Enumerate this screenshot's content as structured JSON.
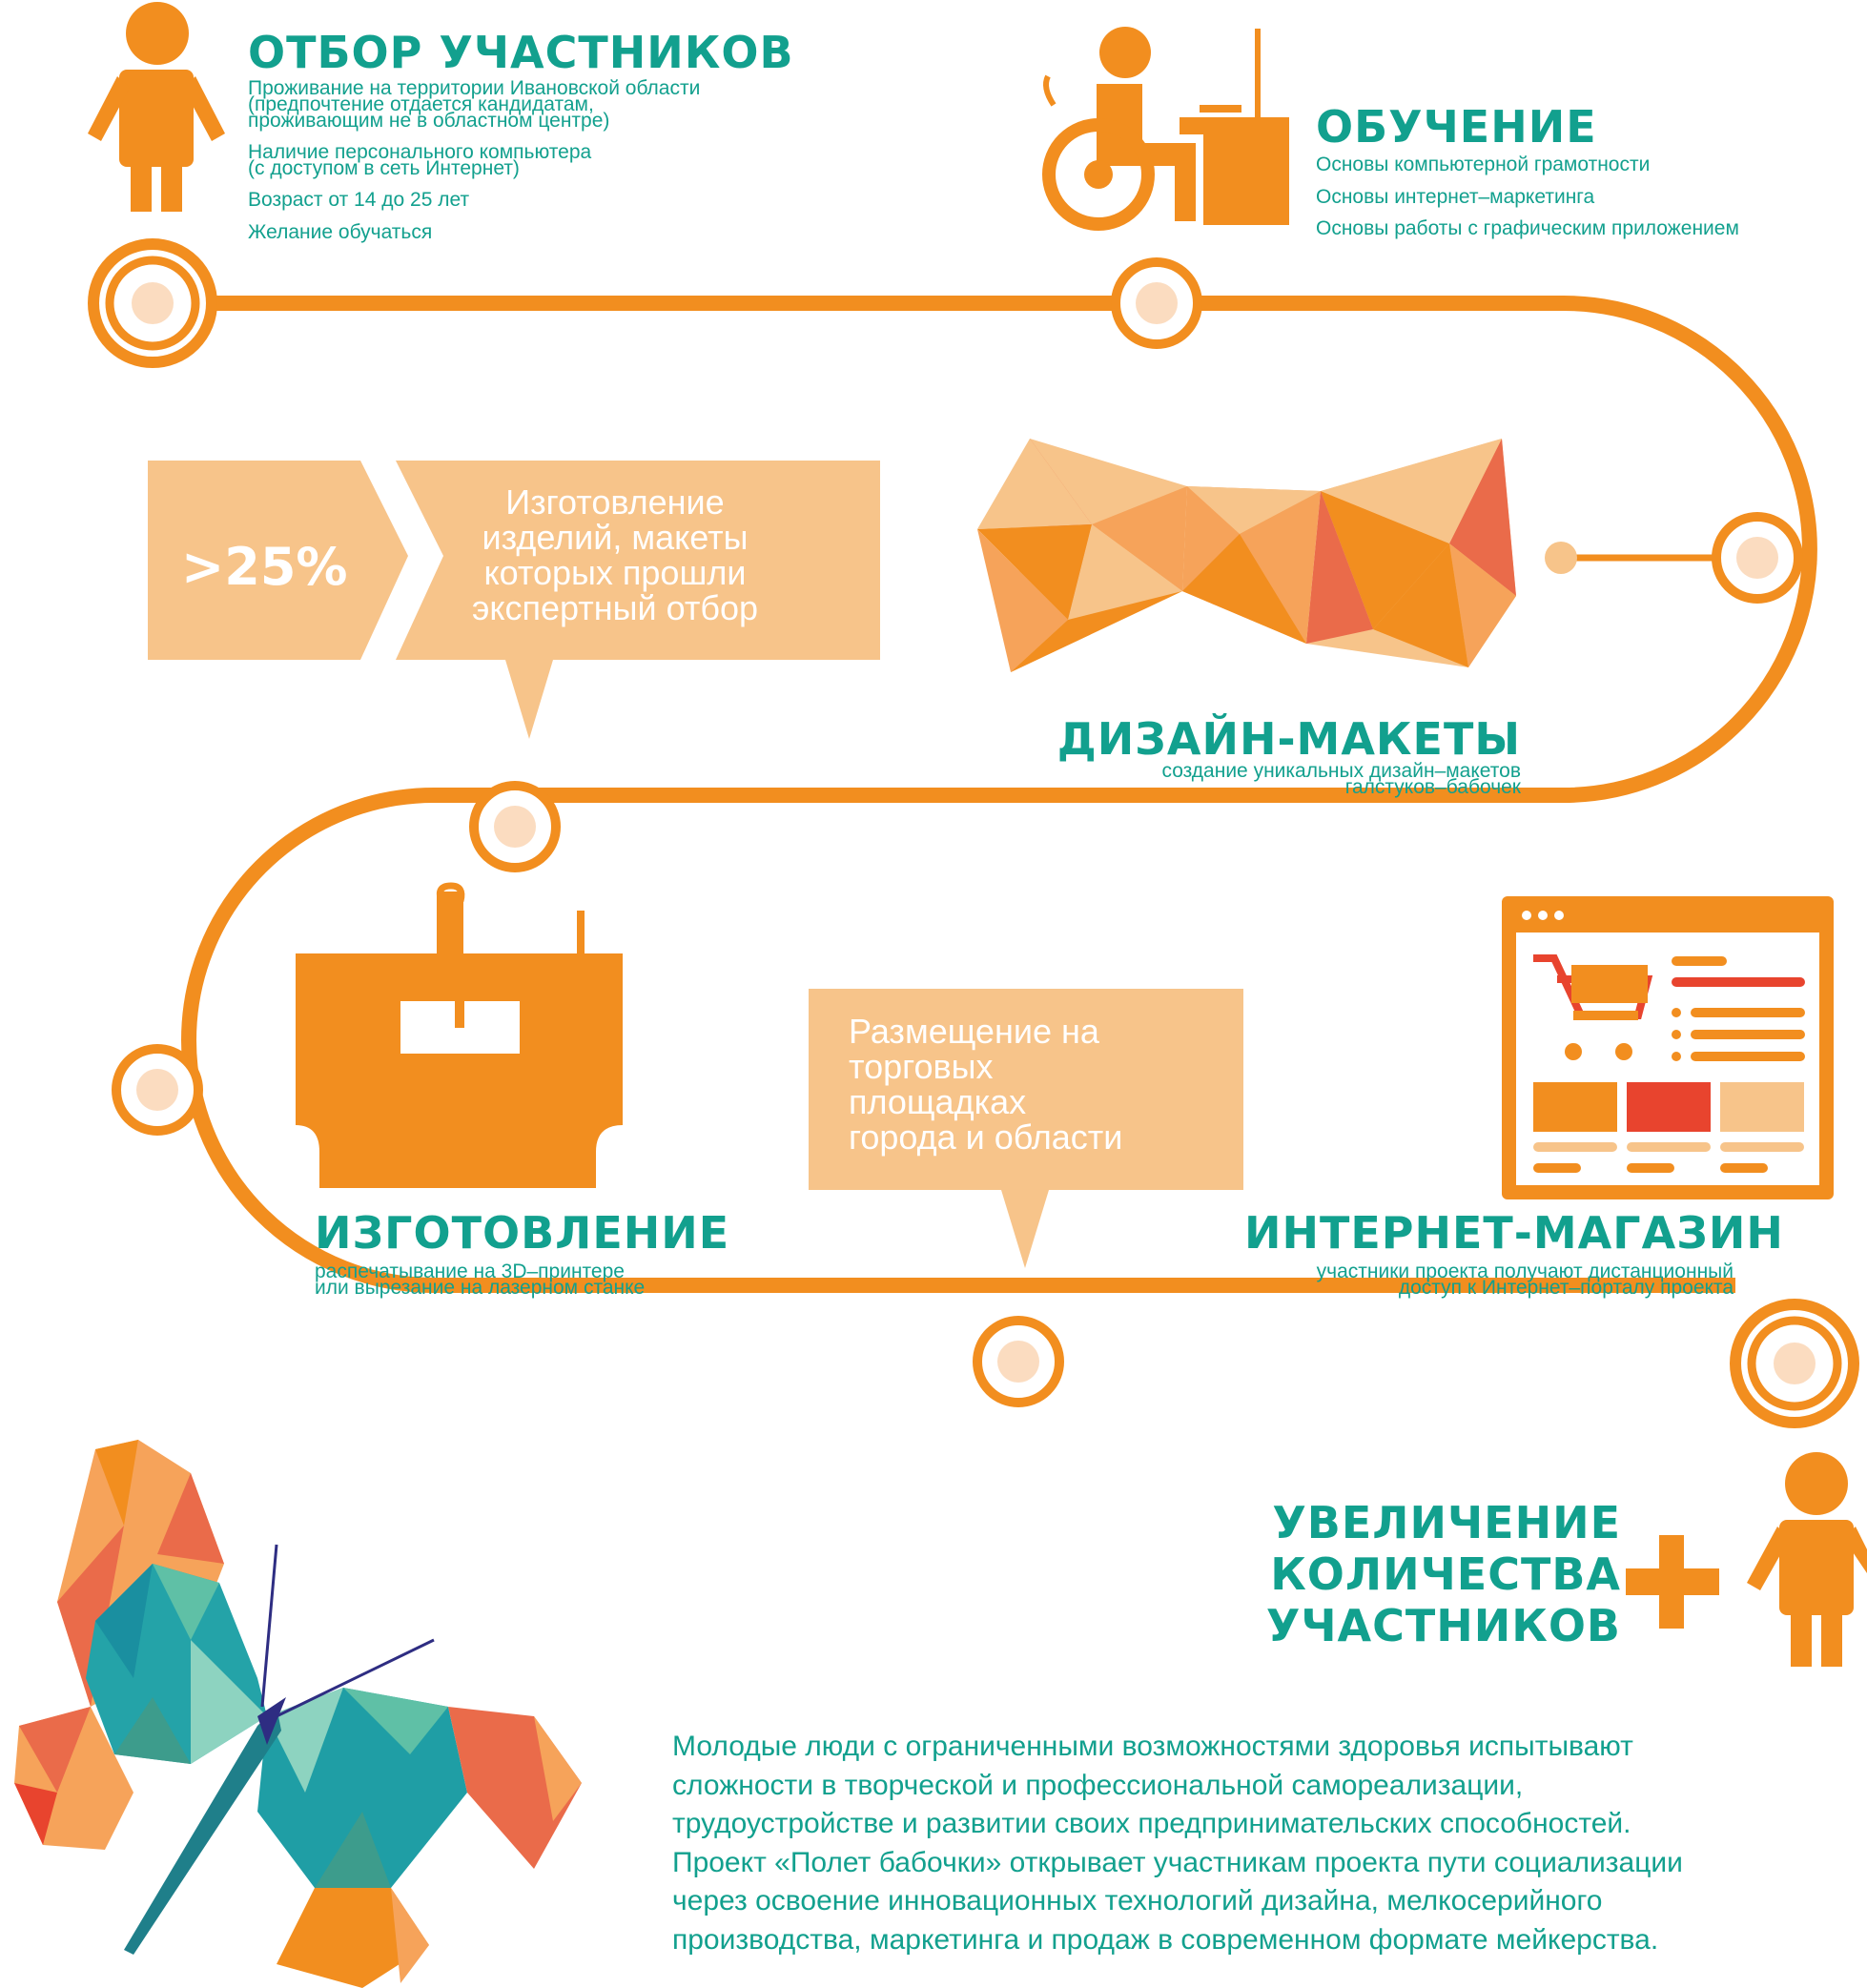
{
  "colors": {
    "orange": "#f28e1f",
    "light_orange": "#f7c48a",
    "pale": "#fbdcc0",
    "teal": "#12a08e",
    "red": "#e8442e"
  },
  "steps": {
    "selection": {
      "title": "ОТБОР УЧАСТНИКОВ",
      "lines": [
        "Проживание на территории Ивановской области",
        "(предпочтение отдается кандидатам,",
        "проживающим не в областном центре)",
        "Наличие персонального компьютера",
        "(с доступом в сеть Интернет)",
        "Возраст от 14 до 25 лет",
        "Желание обучаться"
      ]
    },
    "training": {
      "title": "ОБУЧЕНИЕ",
      "lines": [
        "Основы компьютерной грамотности",
        "Основы интернет–маркетинга",
        "Основы работы с графическим приложением"
      ]
    },
    "design": {
      "title": "ДИЗАЙН-МАКЕТЫ",
      "lines": [
        "создание уникальных дизайн–макетов",
        "галстуков–бабочек"
      ]
    },
    "production": {
      "title": "ИЗГОТОВЛЕНИЕ",
      "lines": [
        "распечатывание на 3D–принтере",
        "или вырезание на лазерном станке"
      ]
    },
    "shop": {
      "title": "ИНТЕРНЕТ-МАГАЗИН",
      "lines": [
        "участники проекта получают дистанционный",
        "доступ к Интернет–порталу проекта"
      ]
    },
    "increase": {
      "title_lines": [
        "УВЕЛИЧЕНИЕ",
        "КОЛИЧЕСТВА",
        "УЧАСТНИКОВ"
      ]
    }
  },
  "callouts": {
    "percent": ">25%",
    "manufacturing": [
      "Изготовление",
      "изделий, макеты",
      "которых прошли",
      "экспертный отбор"
    ],
    "placement": [
      "Размещение на",
      "торговых",
      "площадках",
      "города и области"
    ]
  },
  "paragraph": [
    "Молодые люди с ограниченными возможностями здоровья испытывают",
    "сложности в творческой и профессиональной самореализации,",
    "трудоустройстве и развитии своих предпринимательских способностей.",
    "Проект «Полет бабочки» открывает участникам проекта пути социализации",
    "через освоение инновационных технологий дизайна, мелкосерийного",
    "производства, маркетинга и продаж в современном формате мейкерства."
  ]
}
